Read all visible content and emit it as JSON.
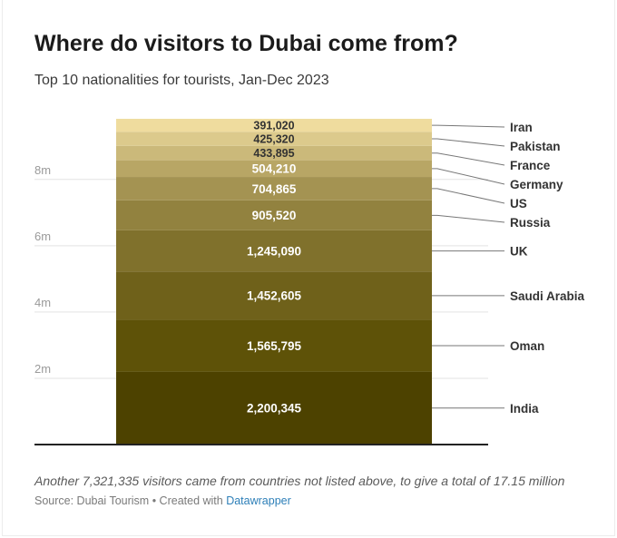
{
  "title": "Where do visitors to Dubai come from?",
  "subtitle": "Top 10 nationalities for tourists, Jan-Dec 2023",
  "note": "Another 7,321,335 visitors came from countries not listed above, to give a total of 17.15 million",
  "footer": {
    "source": "Source: Dubai Tourism",
    "separator": " • ",
    "created_with": "Created with ",
    "tool": "Datawrapper"
  },
  "chart_data": {
    "type": "bar",
    "stacked": true,
    "title": "Where do visitors to Dubai come from?",
    "subtitle": "Top 10 nationalities for tourists, Jan-Dec 2023",
    "ylim": [
      0,
      9.8
    ],
    "y_ticks": [
      2,
      4,
      6,
      8
    ],
    "y_tick_labels": [
      "2m",
      "4m",
      "6m",
      "8m"
    ],
    "grid": true,
    "series": [
      {
        "name": "India",
        "value": 2200345,
        "label": "2,200,345",
        "color": "#4d4200",
        "label_color": "#ffffff"
      },
      {
        "name": "Oman",
        "value": 1565795,
        "label": "1,565,795",
        "color": "#5e5208",
        "label_color": "#ffffff"
      },
      {
        "name": "Saudi Arabia",
        "value": 1452605,
        "label": "1,452,605",
        "color": "#6f611a",
        "label_color": "#ffffff"
      },
      {
        "name": "UK",
        "value": 1245090,
        "label": "1,245,090",
        "color": "#80712c",
        "label_color": "#ffffff"
      },
      {
        "name": "Russia",
        "value": 905520,
        "label": "905,520",
        "color": "#92823f",
        "label_color": "#ffffff"
      },
      {
        "name": "US",
        "value": 704865,
        "label": "704,865",
        "color": "#a49352",
        "label_color": "#ffffff"
      },
      {
        "name": "Germany",
        "value": 504210,
        "label": "504,210",
        "color": "#b8a665",
        "label_color": "#ffffff"
      },
      {
        "name": "France",
        "value": 433895,
        "label": "433,895",
        "color": "#cbb97a",
        "label_color": "#333333"
      },
      {
        "name": "Pakistan",
        "value": 425320,
        "label": "425,320",
        "color": "#dcca8c",
        "label_color": "#333333"
      },
      {
        "name": "Iran",
        "value": 391020,
        "label": "391,020",
        "color": "#efdc9e",
        "label_color": "#333333"
      }
    ]
  }
}
